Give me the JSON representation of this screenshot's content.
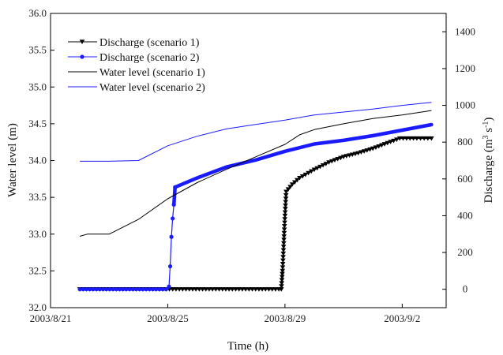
{
  "chart_data": {
    "type": "line",
    "xlabel": "Time (h)",
    "ylabel_left": "Water level (m)",
    "ylabel_right_prefix": "Discharge (m",
    "ylabel_right_sup1": "3",
    "ylabel_right_mid": " s",
    "ylabel_right_sup2": "-1",
    "ylabel_right_suffix": ")",
    "x_domain": [
      "2003-08-21",
      "2003-09-03T12:00"
    ],
    "x_ticks": [
      {
        "date": "2003-08-21",
        "label": "2003/8/21"
      },
      {
        "date": "2003-08-25",
        "label": "2003/8/25"
      },
      {
        "date": "2003-08-29",
        "label": "2003/8/29"
      },
      {
        "date": "2003-09-02",
        "label": "2003/9/2"
      }
    ],
    "ylim_left": [
      32.0,
      36.0
    ],
    "yticks_left": [
      "32.0",
      "32.5",
      "33.0",
      "33.5",
      "34.0",
      "34.5",
      "35.0",
      "35.5",
      "36.0"
    ],
    "ylim_right": [
      -100,
      1500
    ],
    "yticks_right": [
      "0",
      "200",
      "400",
      "600",
      "800",
      "1000",
      "1200",
      "1400"
    ],
    "legend_position": "top-left",
    "series": [
      {
        "name": "Discharge (scenario 1)",
        "axis": "right",
        "color": "#000000",
        "marker": "triangle-down",
        "line_width": 1.2,
        "points": [
          [
            "2003-08-22T00:00",
            0
          ],
          [
            "2003-08-22T12:00",
            0
          ],
          [
            "2003-08-23T12:00",
            0
          ],
          [
            "2003-08-24T12:00",
            0
          ],
          [
            "2003-08-25T12:00",
            0
          ],
          [
            "2003-08-26T12:00",
            0
          ],
          [
            "2003-08-27T12:00",
            0
          ],
          [
            "2003-08-28T12:00",
            0
          ],
          [
            "2003-08-28T21:00",
            0
          ],
          [
            "2003-08-28T22:00",
            100
          ],
          [
            "2003-08-28T23:00",
            250
          ],
          [
            "2003-08-29T00:00",
            400
          ],
          [
            "2003-08-29T01:00",
            530
          ],
          [
            "2003-08-29T06:00",
            570
          ],
          [
            "2003-08-29T12:00",
            605
          ],
          [
            "2003-08-30T00:00",
            650
          ],
          [
            "2003-08-30T12:00",
            690
          ],
          [
            "2003-08-31T00:00",
            720
          ],
          [
            "2003-08-31T12:00",
            740
          ],
          [
            "2003-09-01T00:00",
            765
          ],
          [
            "2003-09-01T12:00",
            795
          ],
          [
            "2003-09-01T22:00",
            820
          ],
          [
            "2003-09-02T12:00",
            820
          ],
          [
            "2003-09-03T00:00",
            820
          ]
        ]
      },
      {
        "name": "Discharge (scenario 2)",
        "axis": "right",
        "color": "#1a1aff",
        "marker": "circle",
        "line_width": 1.2,
        "points": [
          [
            "2003-08-22T00:00",
            0
          ],
          [
            "2003-08-22T12:00",
            0
          ],
          [
            "2003-08-23T12:00",
            0
          ],
          [
            "2003-08-24T12:00",
            0
          ],
          [
            "2003-08-25T00:00",
            0
          ],
          [
            "2003-08-25T01:00",
            15
          ],
          [
            "2003-08-25T02:00",
            125
          ],
          [
            "2003-08-25T03:00",
            285
          ],
          [
            "2003-08-25T04:00",
            385
          ],
          [
            "2003-08-25T05:00",
            460
          ],
          [
            "2003-08-25T06:00",
            555
          ],
          [
            "2003-08-26T00:00",
            605
          ],
          [
            "2003-08-27T00:00",
            665
          ],
          [
            "2003-08-28T00:00",
            703
          ],
          [
            "2003-08-29T00:00",
            750
          ],
          [
            "2003-08-30T00:00",
            790
          ],
          [
            "2003-08-31T00:00",
            810
          ],
          [
            "2003-09-01T00:00",
            835
          ],
          [
            "2003-09-02T00:00",
            865
          ],
          [
            "2003-09-03T00:00",
            895
          ]
        ]
      },
      {
        "name": "Water level  (scenario 1)",
        "axis": "left",
        "color": "#000000",
        "marker": "none",
        "line_width": 1.0,
        "points": [
          [
            "2003-08-22T00:00",
            32.97
          ],
          [
            "2003-08-22T06:00",
            33.0
          ],
          [
            "2003-08-23T00:00",
            33.0
          ],
          [
            "2003-08-24T00:00",
            33.2
          ],
          [
            "2003-08-25T00:00",
            33.48
          ],
          [
            "2003-08-26T00:00",
            33.7
          ],
          [
            "2003-08-27T00:00",
            33.88
          ],
          [
            "2003-08-28T00:00",
            34.05
          ],
          [
            "2003-08-29T00:00",
            34.22
          ],
          [
            "2003-08-29T12:00",
            34.35
          ],
          [
            "2003-08-30T00:00",
            34.42
          ],
          [
            "2003-08-31T00:00",
            34.5
          ],
          [
            "2003-09-01T00:00",
            34.57
          ],
          [
            "2003-09-02T00:00",
            34.62
          ],
          [
            "2003-09-03T00:00",
            34.68
          ]
        ]
      },
      {
        "name": "Water level (scenario 2)",
        "axis": "left",
        "color": "#1a1aff",
        "marker": "none",
        "line_width": 1.0,
        "points": [
          [
            "2003-08-22T00:00",
            33.99
          ],
          [
            "2003-08-23T00:00",
            33.99
          ],
          [
            "2003-08-24T00:00",
            34.0
          ],
          [
            "2003-08-25T00:00",
            34.2
          ],
          [
            "2003-08-26T00:00",
            34.33
          ],
          [
            "2003-08-27T00:00",
            34.43
          ],
          [
            "2003-08-28T00:00",
            34.49
          ],
          [
            "2003-08-29T00:00",
            34.55
          ],
          [
            "2003-08-30T00:00",
            34.62
          ],
          [
            "2003-08-31T00:00",
            34.66
          ],
          [
            "2003-09-01T00:00",
            34.7
          ],
          [
            "2003-09-02T00:00",
            34.75
          ],
          [
            "2003-09-03T00:00",
            34.79
          ]
        ]
      }
    ]
  }
}
